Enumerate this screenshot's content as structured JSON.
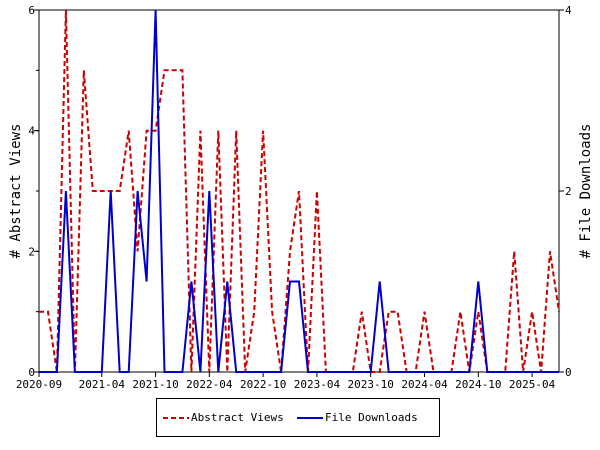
{
  "chart_data": {
    "type": "line",
    "x_tick_labels": [
      "2020-09",
      "2021-04",
      "2021-10",
      "2022-04",
      "2022-10",
      "2023-04",
      "2023-10",
      "2024-04",
      "2024-10",
      "2025-04"
    ],
    "x_tick_index": [
      0,
      7,
      13,
      19,
      25,
      31,
      37,
      43,
      49,
      55
    ],
    "y_left": {
      "label": "# Abstract Views",
      "range": [
        0,
        6
      ],
      "ticks": [
        "0",
        "2",
        "4",
        "6"
      ]
    },
    "y_right": {
      "label": "# File Downloads",
      "range": [
        0,
        4
      ],
      "ticks": [
        "0",
        "2",
        "4"
      ]
    },
    "series": [
      {
        "name": "Abstract Views",
        "axis": "left",
        "color": "#cc0000",
        "style": "dashed",
        "values": [
          1,
          1,
          0,
          6,
          0,
          5,
          3,
          3,
          3,
          3,
          4,
          2,
          4,
          4,
          5,
          5,
          5,
          0,
          4,
          0,
          4,
          0,
          4,
          0,
          1,
          4,
          1,
          0,
          2,
          3,
          0,
          3,
          0,
          0,
          0,
          0,
          1,
          0,
          0,
          1,
          1,
          0,
          0,
          1,
          0,
          0,
          0,
          1,
          0,
          1,
          0,
          0,
          0,
          2,
          0,
          1,
          0,
          2,
          1
        ]
      },
      {
        "name": "File Downloads",
        "axis": "right",
        "color": "#0000cc",
        "style": "solid",
        "values": [
          0,
          0,
          0,
          2,
          0,
          0,
          0,
          0,
          2,
          0,
          0,
          2,
          1,
          4,
          0,
          0,
          0,
          1,
          0,
          2,
          0,
          1,
          0,
          0,
          0,
          0,
          0,
          0,
          1,
          1,
          0,
          0,
          0,
          0,
          0,
          0,
          0,
          0,
          1,
          0,
          0,
          0,
          0,
          0,
          0,
          0,
          0,
          0,
          0,
          1,
          0,
          0,
          0,
          0,
          0,
          0,
          0,
          0,
          0
        ]
      }
    ],
    "legend": {
      "placement": "bottom",
      "items": [
        "Abstract Views",
        "File Downloads"
      ]
    },
    "grid": false
  }
}
